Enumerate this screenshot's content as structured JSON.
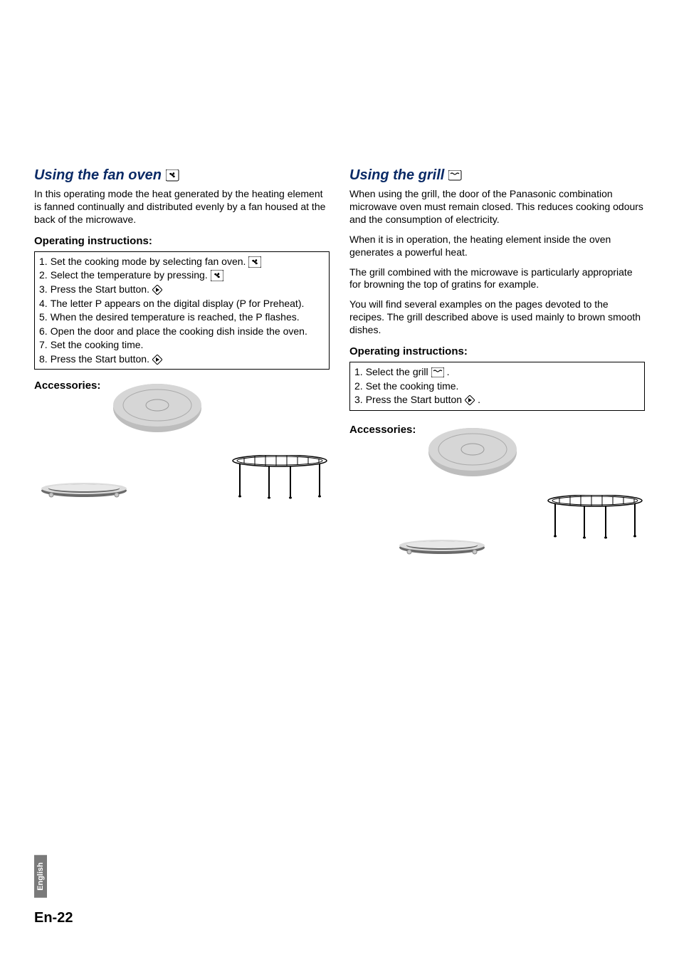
{
  "left": {
    "title": "Using the fan oven",
    "intro": "In this operating mode the heat generated by the heating element is fanned continually and distributed evenly by a fan housed at the back of the microwave.",
    "instr_head": "Operating instructions:",
    "steps": [
      {
        "n": "1.",
        "t": "Set the cooking mode by selecting fan oven.",
        "icon": "fan"
      },
      {
        "n": "2.",
        "t": "Select the temperature by pressing.",
        "icon": "fan"
      },
      {
        "n": "3.",
        "t": "Press the Start button.",
        "icon": "start"
      },
      {
        "n": "4.",
        "t": "The letter P appears on the digital display (P for Preheat)."
      },
      {
        "n": "5.",
        "t": "When the desired temperature is reached, the P flashes."
      },
      {
        "n": "6.",
        "t": "Open the door and place the cooking dish inside the oven."
      },
      {
        "n": "7.",
        "t": "Set the cooking time."
      },
      {
        "n": "8.",
        "t": "Press the Start button.",
        "icon": "start"
      }
    ],
    "accessories": "Accessories:"
  },
  "right": {
    "title": "Using the grill",
    "paras": [
      "When using the grill, the door of the Panasonic combination microwave oven must remain closed.  This reduces cooking odours and the consumption of electricity.",
      "When it is in operation, the heating element inside the oven generates a powerful heat.",
      "The grill combined with the microwave is particularly appropriate for browning the top of gratins for example.",
      "You will find several examples on the pages devoted to the recipes. The grill described above is used mainly to brown smooth dishes."
    ],
    "instr_head": "Operating instructions:",
    "steps": [
      {
        "n": "1.",
        "t": "Select the grill",
        "icon": "grill",
        "suffix": " ."
      },
      {
        "n": "2.",
        "t": "Set the cooking time."
      },
      {
        "n": "3.",
        "t": "Press the Start button",
        "icon": "start",
        "suffix": " ."
      }
    ],
    "accessories": "Accessories:"
  },
  "footer": "En-22",
  "side_tab": "English",
  "colors": {
    "title": "#0a2a66",
    "tab_bg": "#7a7a7a"
  }
}
